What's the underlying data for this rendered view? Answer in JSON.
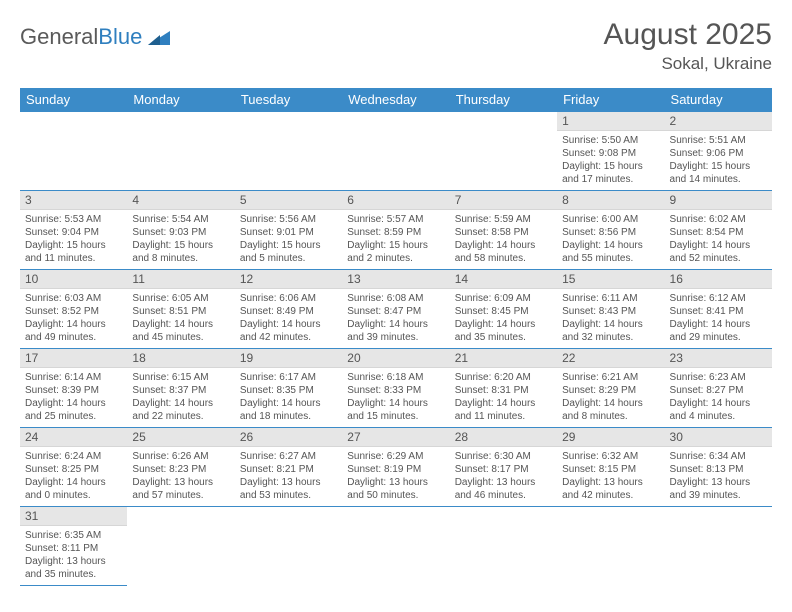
{
  "brand": {
    "part1": "General",
    "part2": "Blue"
  },
  "title": "August 2025",
  "location": "Sokal, Ukraine",
  "colors": {
    "header_bg": "#3b8bc8",
    "header_text": "#ffffff",
    "daynum_bg": "#e6e6e6",
    "text": "#555555",
    "rule": "#3b8bc8"
  },
  "day_headers": [
    "Sunday",
    "Monday",
    "Tuesday",
    "Wednesday",
    "Thursday",
    "Friday",
    "Saturday"
  ],
  "weeks": [
    [
      null,
      null,
      null,
      null,
      null,
      {
        "n": "1",
        "sr": "5:50 AM",
        "ss": "9:08 PM",
        "dh": "15",
        "dm": "17"
      },
      {
        "n": "2",
        "sr": "5:51 AM",
        "ss": "9:06 PM",
        "dh": "15",
        "dm": "14"
      }
    ],
    [
      {
        "n": "3",
        "sr": "5:53 AM",
        "ss": "9:04 PM",
        "dh": "15",
        "dm": "11"
      },
      {
        "n": "4",
        "sr": "5:54 AM",
        "ss": "9:03 PM",
        "dh": "15",
        "dm": "8"
      },
      {
        "n": "5",
        "sr": "5:56 AM",
        "ss": "9:01 PM",
        "dh": "15",
        "dm": "5"
      },
      {
        "n": "6",
        "sr": "5:57 AM",
        "ss": "8:59 PM",
        "dh": "15",
        "dm": "2"
      },
      {
        "n": "7",
        "sr": "5:59 AM",
        "ss": "8:58 PM",
        "dh": "14",
        "dm": "58"
      },
      {
        "n": "8",
        "sr": "6:00 AM",
        "ss": "8:56 PM",
        "dh": "14",
        "dm": "55"
      },
      {
        "n": "9",
        "sr": "6:02 AM",
        "ss": "8:54 PM",
        "dh": "14",
        "dm": "52"
      }
    ],
    [
      {
        "n": "10",
        "sr": "6:03 AM",
        "ss": "8:52 PM",
        "dh": "14",
        "dm": "49"
      },
      {
        "n": "11",
        "sr": "6:05 AM",
        "ss": "8:51 PM",
        "dh": "14",
        "dm": "45"
      },
      {
        "n": "12",
        "sr": "6:06 AM",
        "ss": "8:49 PM",
        "dh": "14",
        "dm": "42"
      },
      {
        "n": "13",
        "sr": "6:08 AM",
        "ss": "8:47 PM",
        "dh": "14",
        "dm": "39"
      },
      {
        "n": "14",
        "sr": "6:09 AM",
        "ss": "8:45 PM",
        "dh": "14",
        "dm": "35"
      },
      {
        "n": "15",
        "sr": "6:11 AM",
        "ss": "8:43 PM",
        "dh": "14",
        "dm": "32"
      },
      {
        "n": "16",
        "sr": "6:12 AM",
        "ss": "8:41 PM",
        "dh": "14",
        "dm": "29"
      }
    ],
    [
      {
        "n": "17",
        "sr": "6:14 AM",
        "ss": "8:39 PM",
        "dh": "14",
        "dm": "25"
      },
      {
        "n": "18",
        "sr": "6:15 AM",
        "ss": "8:37 PM",
        "dh": "14",
        "dm": "22"
      },
      {
        "n": "19",
        "sr": "6:17 AM",
        "ss": "8:35 PM",
        "dh": "14",
        "dm": "18"
      },
      {
        "n": "20",
        "sr": "6:18 AM",
        "ss": "8:33 PM",
        "dh": "14",
        "dm": "15"
      },
      {
        "n": "21",
        "sr": "6:20 AM",
        "ss": "8:31 PM",
        "dh": "14",
        "dm": "11"
      },
      {
        "n": "22",
        "sr": "6:21 AM",
        "ss": "8:29 PM",
        "dh": "14",
        "dm": "8"
      },
      {
        "n": "23",
        "sr": "6:23 AM",
        "ss": "8:27 PM",
        "dh": "14",
        "dm": "4"
      }
    ],
    [
      {
        "n": "24",
        "sr": "6:24 AM",
        "ss": "8:25 PM",
        "dh": "14",
        "dm": "0"
      },
      {
        "n": "25",
        "sr": "6:26 AM",
        "ss": "8:23 PM",
        "dh": "13",
        "dm": "57"
      },
      {
        "n": "26",
        "sr": "6:27 AM",
        "ss": "8:21 PM",
        "dh": "13",
        "dm": "53"
      },
      {
        "n": "27",
        "sr": "6:29 AM",
        "ss": "8:19 PM",
        "dh": "13",
        "dm": "50"
      },
      {
        "n": "28",
        "sr": "6:30 AM",
        "ss": "8:17 PM",
        "dh": "13",
        "dm": "46"
      },
      {
        "n": "29",
        "sr": "6:32 AM",
        "ss": "8:15 PM",
        "dh": "13",
        "dm": "42"
      },
      {
        "n": "30",
        "sr": "6:34 AM",
        "ss": "8:13 PM",
        "dh": "13",
        "dm": "39"
      }
    ],
    [
      {
        "n": "31",
        "sr": "6:35 AM",
        "ss": "8:11 PM",
        "dh": "13",
        "dm": "35"
      },
      null,
      null,
      null,
      null,
      null,
      null
    ]
  ]
}
